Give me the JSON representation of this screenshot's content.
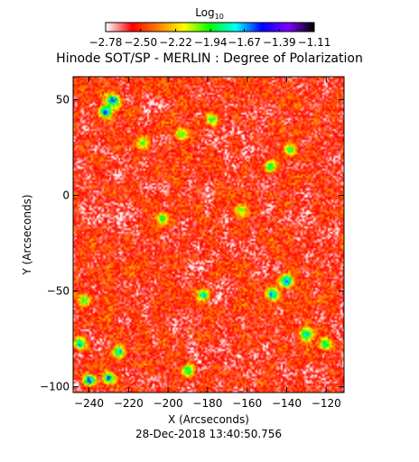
{
  "chart_data": {
    "type": "heatmap",
    "title": "Hinode SOT/SP - MERLIN : Degree of Polarization",
    "xlabel": "X (Arcseconds)",
    "ylabel": "Y (Arcseconds)",
    "xlim": [
      -248,
      -111
    ],
    "ylim": [
      -103,
      62
    ],
    "x_ticks": [
      -240,
      -220,
      -200,
      -180,
      -160,
      -140,
      -120
    ],
    "y_ticks": [
      -100,
      -50,
      0,
      50
    ],
    "x_tick_labels": [
      "−240",
      "−220",
      "−200",
      "−180",
      "−160",
      "−140",
      "−120"
    ],
    "y_tick_labels": [
      "−100",
      "−50",
      "0",
      "50"
    ],
    "colorbar": {
      "title_base": "Log",
      "title_sub": "10",
      "range": [
        -2.78,
        -1.11
      ],
      "ticks": [
        -2.78,
        -2.5,
        -2.22,
        -1.94,
        -1.67,
        -1.39,
        -1.11
      ],
      "tick_labels": [
        "−2.78",
        "−2.50",
        "−2.22",
        "−1.94",
        "−1.67",
        "−1.39",
        "−1.11"
      ],
      "colormap": [
        "#ffffff",
        "#ff0000",
        "#ff7f00",
        "#ffff00",
        "#00ff00",
        "#00ffff",
        "#0000ff",
        "#7f00ff",
        "#000000"
      ]
    },
    "background_level": -2.55,
    "strong_regions": [
      {
        "x": -232,
        "y": 44,
        "level": -1.25
      },
      {
        "x": -228,
        "y": 50,
        "level": -1.35
      },
      {
        "x": -213,
        "y": 28,
        "level": -1.85
      },
      {
        "x": -178,
        "y": 40,
        "level": -1.75
      },
      {
        "x": -193,
        "y": 32,
        "level": -1.8
      },
      {
        "x": -148,
        "y": 15,
        "level": -1.7
      },
      {
        "x": -138,
        "y": 24,
        "level": -1.75
      },
      {
        "x": -203,
        "y": -12,
        "level": -1.8
      },
      {
        "x": -163,
        "y": -8,
        "level": -1.85
      },
      {
        "x": -140,
        "y": -45,
        "level": -1.3
      },
      {
        "x": -147,
        "y": -52,
        "level": -1.45
      },
      {
        "x": -182,
        "y": -52,
        "level": -1.6
      },
      {
        "x": -243,
        "y": -55,
        "level": -1.7
      },
      {
        "x": -245,
        "y": -78,
        "level": -1.55
      },
      {
        "x": -225,
        "y": -82,
        "level": -1.5
      },
      {
        "x": -240,
        "y": -97,
        "level": -1.3
      },
      {
        "x": -230,
        "y": -96,
        "level": -1.45
      },
      {
        "x": -190,
        "y": -92,
        "level": -1.7
      },
      {
        "x": -130,
        "y": -73,
        "level": -1.55
      },
      {
        "x": -120,
        "y": -78,
        "level": -1.65
      }
    ]
  },
  "footer": {
    "timestamp": "28-Dec-2018 13:40:50.756"
  }
}
